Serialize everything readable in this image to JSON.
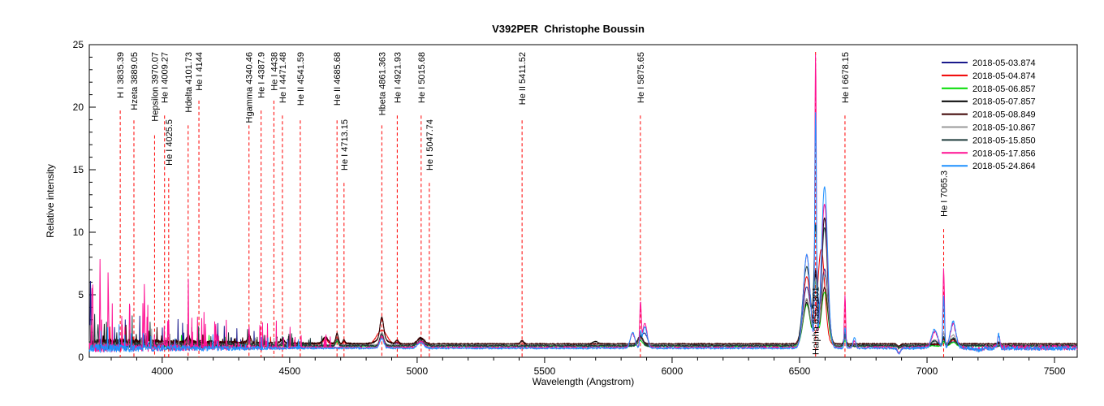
{
  "title": "V392PER  Christophe Boussin",
  "chart_data": {
    "type": "line",
    "title": "V392PER  Christophe Boussin",
    "xlabel": "Wavelength (Angstrom)",
    "ylabel": "Relative intensity",
    "xlim": [
      3714,
      7589
    ],
    "ylim": [
      0,
      25
    ],
    "x_major_ticks": [
      4000,
      4500,
      5000,
      5500,
      6000,
      6500,
      7000,
      7500
    ],
    "x_minor_step": 100,
    "y_major_ticks": [
      0,
      5,
      10,
      15,
      20,
      25
    ],
    "y_minor_step": 1,
    "grid": false,
    "legend_position": "top-right",
    "line_marker_color": "#ff0000",
    "spectral_lines": [
      {
        "label": "H I 3835.39",
        "wavelength": 3835.39,
        "row": "top"
      },
      {
        "label": "Hzeta 3889.05",
        "wavelength": 3889.05,
        "row": "top"
      },
      {
        "label": "Hepsilon 3970.07",
        "wavelength": 3970.07,
        "row": "top"
      },
      {
        "label": "He I 4009.27",
        "wavelength": 4009.27,
        "row": "top"
      },
      {
        "label": "He I 4025.5",
        "wavelength": 4025.5,
        "row": "mid"
      },
      {
        "label": "Hdelta 4101.73",
        "wavelength": 4101.73,
        "row": "top"
      },
      {
        "label": "He I 4144",
        "wavelength": 4144,
        "row": "top"
      },
      {
        "label": "Hgamma 4340.46",
        "wavelength": 4340.46,
        "row": "top"
      },
      {
        "label": "He I 4387.9",
        "wavelength": 4387.9,
        "row": "top"
      },
      {
        "label": "He I 4438",
        "wavelength": 4438,
        "row": "top"
      },
      {
        "label": "He I 4471.48",
        "wavelength": 4471.48,
        "row": "top"
      },
      {
        "label": "He II 4541.59",
        "wavelength": 4541.59,
        "row": "top"
      },
      {
        "label": "He II 4685.68",
        "wavelength": 4685.68,
        "row": "top"
      },
      {
        "label": "He I 4713.15",
        "wavelength": 4713.15,
        "row": "mid"
      },
      {
        "label": "Hbeta 4861.363",
        "wavelength": 4861.363,
        "row": "top"
      },
      {
        "label": "He I 4921.93",
        "wavelength": 4921.93,
        "row": "top"
      },
      {
        "label": "He I 5015.68",
        "wavelength": 5015.68,
        "row": "top"
      },
      {
        "label": "He I 5047.74",
        "wavelength": 5047.74,
        "row": "mid"
      },
      {
        "label": "He II 5411.52",
        "wavelength": 5411.52,
        "row": "top"
      },
      {
        "label": "He I 5875.65",
        "wavelength": 5875.65,
        "row": "top"
      },
      {
        "label": "Halpha 6562.801",
        "wavelength": 6562.801,
        "row": "bottom"
      },
      {
        "label": "He I 6678.15",
        "wavelength": 6678.15,
        "row": "top"
      },
      {
        "label": "He I 7065.3",
        "wavelength": 7065.3,
        "row": "low"
      }
    ],
    "series": [
      {
        "label": "2018-05-03.874",
        "color": "#1a1a8c",
        "base": 0.95,
        "noise": 0.05,
        "blue_noise": {
          "until": 4500,
          "amp": 0.2,
          "rate": 0.04,
          "max": 3.2
        },
        "peaks": [
          [
            3719,
            5.6,
            1.2
          ],
          [
            4101.7,
            0.35,
            6
          ],
          [
            4340.5,
            0.4,
            6
          ],
          [
            4471,
            0.25,
            6
          ],
          [
            4685.7,
            0.5,
            5
          ],
          [
            4861.4,
            0.85,
            8
          ],
          [
            4921.9,
            0.2,
            6
          ],
          [
            5014,
            0.6,
            13
          ],
          [
            5875.7,
            0.45,
            9
          ],
          [
            5893,
            0.9,
            10
          ],
          [
            6528,
            4.7,
            15
          ],
          [
            6564,
            4.6,
            9
          ],
          [
            6598,
            6.1,
            13
          ],
          [
            6678.2,
            0.5,
            4
          ],
          [
            6890,
            -0.2,
            6
          ],
          [
            7065.3,
            0.35,
            4
          ],
          [
            7102,
            0.3,
            10
          ],
          [
            7281,
            0.15,
            4
          ]
        ]
      },
      {
        "label": "2018-05-04.874",
        "color": "#f00000",
        "base": 1.02,
        "noise": 0.04,
        "blue_noise": {
          "until": 4550,
          "amp": 0.16,
          "rate": 0.03,
          "max": 1.6
        },
        "peaks": [
          [
            4101.7,
            0.35,
            7
          ],
          [
            4340.5,
            0.45,
            7
          ],
          [
            4640,
            0.4,
            10
          ],
          [
            4685.7,
            0.55,
            5
          ],
          [
            4713,
            0.25,
            4
          ],
          [
            4861.4,
            1.15,
            20
          ],
          [
            4921.9,
            0.2,
            6
          ],
          [
            5014,
            0.45,
            13
          ],
          [
            5875.7,
            0.55,
            9
          ],
          [
            6528,
            5.4,
            15
          ],
          [
            6585,
            7.6,
            14
          ],
          [
            6678.2,
            0.6,
            4
          ],
          [
            6890,
            -0.2,
            6
          ],
          [
            7065.3,
            0.5,
            4
          ],
          [
            7102,
            0.35,
            10
          ],
          [
            7281,
            0.2,
            4
          ]
        ]
      },
      {
        "label": "2018-05-06.857",
        "color": "#00dc00",
        "base": 0.9,
        "noise": 0.04,
        "blue_noise": {
          "until": 4550,
          "amp": 0.15,
          "rate": 0.03,
          "max": 1.5
        },
        "peaks": [
          [
            4101.7,
            0.25,
            6
          ],
          [
            4340.5,
            0.3,
            6
          ],
          [
            4685.7,
            0.4,
            5
          ],
          [
            4861.4,
            0.8,
            7
          ],
          [
            5014,
            0.35,
            12
          ],
          [
            5875.7,
            0.45,
            9
          ],
          [
            6528,
            3.3,
            14
          ],
          [
            6562.8,
            5.0,
            6
          ],
          [
            6598,
            4.3,
            13
          ],
          [
            6678.2,
            0.45,
            4
          ],
          [
            6890,
            -0.15,
            6
          ],
          [
            7065.3,
            0.4,
            4
          ],
          [
            7102,
            0.3,
            10
          ]
        ]
      },
      {
        "label": "2018-05-07.857",
        "color": "#000000",
        "base": 1.05,
        "blue_lift": 0.18,
        "noise": 0.05,
        "blue_noise": {
          "until": 4550,
          "amp": 0.16,
          "rate": 0.03,
          "max": 1.8
        },
        "peaks": [
          [
            4101.7,
            0.5,
            6
          ],
          [
            4340.5,
            0.55,
            6
          ],
          [
            4471,
            0.3,
            6
          ],
          [
            4640,
            0.45,
            10
          ],
          [
            4685.7,
            0.75,
            5
          ],
          [
            4713,
            0.3,
            4
          ],
          [
            4861.4,
            1.7,
            7
          ],
          [
            4861.4,
            0.4,
            22
          ],
          [
            4921.9,
            0.3,
            6
          ],
          [
            5014,
            0.45,
            13
          ],
          [
            5411.5,
            0.25,
            6
          ],
          [
            5700,
            0.2,
            12
          ],
          [
            5875.7,
            0.6,
            9
          ],
          [
            6528,
            3.3,
            14
          ],
          [
            6562.8,
            5.3,
            6
          ],
          [
            6598,
            10.1,
            12
          ],
          [
            6678.2,
            0.8,
            4
          ],
          [
            6890,
            -0.2,
            6
          ],
          [
            7065.3,
            0.5,
            4
          ],
          [
            7102,
            0.4,
            10
          ],
          [
            7281,
            0.2,
            4
          ]
        ]
      },
      {
        "label": "2018-05-08.849",
        "color": "#3c0000",
        "base": 1.08,
        "blue_lift": 0.2,
        "noise": 0.05,
        "blue_noise": {
          "until": 4550,
          "amp": 0.16,
          "rate": 0.03,
          "max": 1.8
        },
        "peaks": [
          [
            4101.7,
            0.55,
            6
          ],
          [
            4340.5,
            0.6,
            6
          ],
          [
            4471,
            0.35,
            6
          ],
          [
            4640,
            0.5,
            10
          ],
          [
            4685.7,
            0.8,
            5
          ],
          [
            4713,
            0.3,
            4
          ],
          [
            4861.4,
            1.75,
            7
          ],
          [
            4861.4,
            0.4,
            22
          ],
          [
            4921.9,
            0.3,
            6
          ],
          [
            5014,
            0.5,
            13
          ],
          [
            5411.5,
            0.25,
            6
          ],
          [
            5875.7,
            0.65,
            9
          ],
          [
            6528,
            3.5,
            14
          ],
          [
            6562.8,
            5.6,
            6
          ],
          [
            6598,
            4.5,
            13
          ],
          [
            6678.2,
            0.7,
            4
          ],
          [
            6890,
            -0.2,
            6
          ],
          [
            7065.3,
            0.5,
            4
          ],
          [
            7102,
            0.4,
            10
          ]
        ]
      },
      {
        "label": "2018-05-10.867",
        "color": "#999999",
        "base": 0.98,
        "noise": 0.05,
        "blue_noise": {
          "until": 4550,
          "amp": 0.18,
          "rate": 0.03,
          "max": 1.8
        },
        "peaks": [
          [
            4101.7,
            0.3,
            6
          ],
          [
            4340.5,
            0.35,
            6
          ],
          [
            4685.7,
            0.5,
            5
          ],
          [
            4861.4,
            1.0,
            8
          ],
          [
            5014,
            0.4,
            13
          ],
          [
            5875.7,
            0.5,
            9
          ],
          [
            6528,
            3.7,
            14
          ],
          [
            6562.8,
            5.0,
            6
          ],
          [
            6598,
            5.6,
            13
          ],
          [
            6678.2,
            0.5,
            4
          ],
          [
            6890,
            -0.2,
            6
          ],
          [
            7030,
            0.4,
            12
          ],
          [
            7065.3,
            1.0,
            4
          ],
          [
            7102,
            0.8,
            11
          ]
        ]
      },
      {
        "label": "2018-05-15.850",
        "color": "#1d3b3b",
        "base": 0.92,
        "noise": 0.09,
        "blue_noise": {
          "until": 4650,
          "amp": 0.3,
          "rate": 0.07,
          "max": 2.6
        },
        "peaks": [
          [
            3722,
            1.8,
            2
          ],
          [
            3748,
            1.6,
            2
          ],
          [
            4101.7,
            0.3,
            6
          ],
          [
            4340.5,
            0.35,
            6
          ],
          [
            4685.7,
            0.5,
            5
          ],
          [
            4861.4,
            0.9,
            8
          ],
          [
            5014,
            0.4,
            13
          ],
          [
            5875.7,
            0.8,
            9
          ],
          [
            6528,
            6.3,
            15
          ],
          [
            6562.8,
            9.2,
            6
          ],
          [
            6598,
            9.4,
            12
          ],
          [
            6678.2,
            0.8,
            4
          ],
          [
            6890,
            -0.2,
            6
          ],
          [
            7030,
            0.4,
            12
          ],
          [
            7065.3,
            0.8,
            4
          ],
          [
            7102,
            0.6,
            11
          ]
        ]
      },
      {
        "label": "2018-05-17.856",
        "color": "#ff0f92",
        "base": 0.78,
        "noise": 0.08,
        "blue_noise": {
          "until": 4680,
          "amp": 0.3,
          "rate": 0.09,
          "max": 4.6
        },
        "red_noise": {
          "from": 6750,
          "amp": 0.12
        },
        "peaks": [
          [
            3727,
            5.2,
            1.4
          ],
          [
            3756,
            6.0,
            1.4
          ],
          [
            3789,
            4.4,
            1.3
          ],
          [
            3872,
            4.0,
            1.3
          ],
          [
            3930,
            4.8,
            1.4
          ],
          [
            4025,
            2.6,
            1.2
          ],
          [
            4101.7,
            2.2,
            1.5
          ],
          [
            4210,
            2.0,
            1.2
          ],
          [
            4340.5,
            1.6,
            1.5
          ],
          [
            4861.4,
            0.9,
            8
          ],
          [
            5014,
            0.5,
            12
          ],
          [
            5845,
            1.1,
            9
          ],
          [
            5876,
            3.4,
            3
          ],
          [
            5893,
            1.9,
            9
          ],
          [
            6528,
            7.4,
            13
          ],
          [
            6562.8,
            23.2,
            2.9
          ],
          [
            6598,
            11.5,
            12
          ],
          [
            6678.2,
            4.2,
            2.6
          ],
          [
            6715,
            0.5,
            5
          ],
          [
            6890,
            -0.45,
            6
          ],
          [
            7030,
            1.3,
            12
          ],
          [
            7065.3,
            6.2,
            3
          ],
          [
            7102,
            1.9,
            11
          ],
          [
            7200,
            -0.15,
            15
          ],
          [
            7281,
            1.1,
            4
          ]
        ]
      },
      {
        "label": "2018-05-24.864",
        "color": "#1e90ff",
        "base": 0.72,
        "noise": 0.07,
        "blue_noise": {
          "until": 4650,
          "amp": 0.28,
          "rate": 0.05,
          "max": 2.0
        },
        "red_noise": {
          "from": 6750,
          "amp": 0.1
        },
        "peaks": [
          [
            4861.4,
            0.8,
            8
          ],
          [
            5014,
            0.45,
            12
          ],
          [
            5845,
            1.3,
            9
          ],
          [
            5876,
            1.1,
            3
          ],
          [
            5893,
            1.7,
            9
          ],
          [
            6528,
            7.5,
            13
          ],
          [
            6562.8,
            18.5,
            3.2
          ],
          [
            6598,
            12.9,
            12
          ],
          [
            6678.2,
            1.7,
            3
          ],
          [
            6715,
            0.9,
            5
          ],
          [
            6890,
            -0.4,
            6
          ],
          [
            7030,
            1.5,
            12
          ],
          [
            7065.3,
            4.1,
            3.2
          ],
          [
            7102,
            2.1,
            11
          ],
          [
            7200,
            -0.15,
            15
          ],
          [
            7281,
            1.1,
            4
          ]
        ]
      }
    ]
  }
}
